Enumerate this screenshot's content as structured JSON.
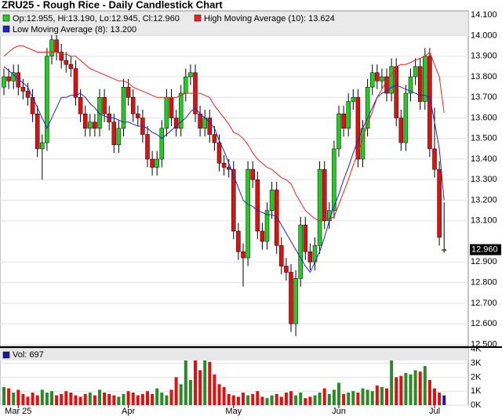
{
  "chart_data": {
    "type": "candlestick",
    "title": "ZRU25 - Rough Rice - Daily Candlestick Chart",
    "ohlc_label": "Op:12.955, Hi:13.190, Lo:12.945, Cl:12.960",
    "categories": [
      null,
      null,
      null,
      "Mar 25",
      null,
      null,
      null,
      null,
      null,
      null,
      null,
      null,
      null,
      null,
      null,
      null,
      null,
      null,
      null,
      null,
      null,
      null,
      null,
      null,
      null,
      null,
      "Apr",
      null,
      null,
      null,
      null,
      null,
      null,
      null,
      null,
      null,
      null,
      null,
      null,
      null,
      null,
      null,
      null,
      null,
      null,
      null,
      null,
      null,
      "May",
      null,
      null,
      null,
      null,
      null,
      null,
      null,
      null,
      null,
      null,
      null,
      null,
      null,
      null,
      null,
      null,
      null,
      null,
      null,
      null,
      null,
      "Jun",
      null,
      null,
      null,
      null,
      null,
      null,
      null,
      null,
      null,
      null,
      null,
      null,
      null,
      null,
      null,
      null,
      null,
      null,
      null,
      "Jul",
      null,
      null
    ],
    "open": [
      13.75,
      13.8,
      13.78,
      13.82,
      13.75,
      13.73,
      13.7,
      13.62,
      13.45,
      13.48,
      13.9,
      13.98,
      13.92,
      13.88,
      13.86,
      13.84,
      13.7,
      13.62,
      13.55,
      13.58,
      13.55,
      13.7,
      13.62,
      13.58,
      13.47,
      13.55,
      13.75,
      13.7,
      13.62,
      13.6,
      13.52,
      13.4,
      13.36,
      13.4,
      13.55,
      13.7,
      13.6,
      13.55,
      13.72,
      13.8,
      13.82,
      13.62,
      13.55,
      13.6,
      13.52,
      13.48,
      13.38,
      13.36,
      13.35,
      13.05,
      12.95,
      12.92,
      13.35,
      13.3,
      13.05,
      13.0,
      13.15,
      13.25,
      12.98,
      12.88,
      12.85,
      12.6,
      12.82,
      13.08,
      12.95,
      12.9,
      12.98,
      13.35,
      13.1,
      13.15,
      13.45,
      13.62,
      13.55,
      13.68,
      13.7,
      13.4,
      13.55,
      13.75,
      13.82,
      13.78,
      13.8,
      13.72,
      13.85,
      13.6,
      13.48,
      13.72,
      13.8,
      13.85,
      13.68,
      13.9,
      13.45,
      13.35,
      12.955
    ],
    "high": [
      13.84,
      13.84,
      13.86,
      13.86,
      13.79,
      13.77,
      13.74,
      13.66,
      13.52,
      13.94,
      14.05,
      14.02,
      13.96,
      13.92,
      13.9,
      13.88,
      13.74,
      13.66,
      13.62,
      13.62,
      13.74,
      13.74,
      13.66,
      13.62,
      13.59,
      13.79,
      13.79,
      13.74,
      13.66,
      13.64,
      13.56,
      13.44,
      13.44,
      13.59,
      13.74,
      13.74,
      13.64,
      13.76,
      13.84,
      13.86,
      13.86,
      13.66,
      13.64,
      13.64,
      13.56,
      13.52,
      13.42,
      13.4,
      13.39,
      13.09,
      12.99,
      13.39,
      13.39,
      13.34,
      13.09,
      13.19,
      13.29,
      13.29,
      13.02,
      12.92,
      12.89,
      12.86,
      13.12,
      13.12,
      12.99,
      13.02,
      13.39,
      13.39,
      13.19,
      13.49,
      13.66,
      13.66,
      13.72,
      13.74,
      13.74,
      13.59,
      13.79,
      13.86,
      13.86,
      13.84,
      13.84,
      13.89,
      13.89,
      13.64,
      13.76,
      13.84,
      13.89,
      13.89,
      13.94,
      13.94,
      13.65,
      13.39,
      13.19
    ],
    "low": [
      13.71,
      13.74,
      13.74,
      13.71,
      13.69,
      13.66,
      13.58,
      13.41,
      13.3,
      13.44,
      13.86,
      13.88,
      13.84,
      13.82,
      13.8,
      13.66,
      13.58,
      13.51,
      13.51,
      13.51,
      13.51,
      13.58,
      13.54,
      13.43,
      13.43,
      13.51,
      13.66,
      13.58,
      13.56,
      13.48,
      13.36,
      13.32,
      13.32,
      13.36,
      13.51,
      13.56,
      13.51,
      13.51,
      13.68,
      13.76,
      13.58,
      13.51,
      13.51,
      13.48,
      13.44,
      13.34,
      13.32,
      13.31,
      13.01,
      12.91,
      12.78,
      12.88,
      13.26,
      13.01,
      12.96,
      12.96,
      13.11,
      12.94,
      12.84,
      12.81,
      12.56,
      12.54,
      12.78,
      12.91,
      12.86,
      12.86,
      12.94,
      13.06,
      13.06,
      13.11,
      13.41,
      13.51,
      13.51,
      13.64,
      13.36,
      13.36,
      13.51,
      13.71,
      13.74,
      13.74,
      13.68,
      13.68,
      13.56,
      13.44,
      13.44,
      13.68,
      13.76,
      13.64,
      13.64,
      13.41,
      13.31,
      12.98,
      12.945
    ],
    "close": [
      13.8,
      13.78,
      13.82,
      13.75,
      13.73,
      13.7,
      13.62,
      13.45,
      13.48,
      13.9,
      13.98,
      13.92,
      13.88,
      13.86,
      13.84,
      13.7,
      13.62,
      13.55,
      13.58,
      13.55,
      13.7,
      13.62,
      13.58,
      13.47,
      13.55,
      13.75,
      13.7,
      13.62,
      13.6,
      13.52,
      13.4,
      13.36,
      13.4,
      13.55,
      13.7,
      13.6,
      13.55,
      13.72,
      13.8,
      13.82,
      13.62,
      13.55,
      13.6,
      13.52,
      13.48,
      13.38,
      13.36,
      13.35,
      13.05,
      12.95,
      12.92,
      13.35,
      13.3,
      13.05,
      13.0,
      13.15,
      13.25,
      12.98,
      12.88,
      12.85,
      12.6,
      12.82,
      13.08,
      12.95,
      12.9,
      12.98,
      13.35,
      13.1,
      13.15,
      13.45,
      13.62,
      13.55,
      13.68,
      13.7,
      13.4,
      13.55,
      13.75,
      13.82,
      13.78,
      13.8,
      13.72,
      13.85,
      13.6,
      13.48,
      13.72,
      13.8,
      13.85,
      13.68,
      13.9,
      13.45,
      13.35,
      13.02,
      12.96
    ],
    "up_color": "#22cc22",
    "down_color": "#dd1111",
    "series": [
      {
        "name": "High Moving Average (10): 13.624",
        "color": "#ee2222",
        "values": [
          13.9,
          13.92,
          13.94,
          13.95,
          13.95,
          13.94,
          13.93,
          13.92,
          13.92,
          13.92,
          13.92,
          13.92,
          13.91,
          13.91,
          13.9,
          13.9,
          13.88,
          13.86,
          13.84,
          13.83,
          13.82,
          13.81,
          13.8,
          13.79,
          13.78,
          13.78,
          13.77,
          13.75,
          13.74,
          13.73,
          13.72,
          13.71,
          13.7,
          13.7,
          13.7,
          13.7,
          13.7,
          13.71,
          13.72,
          13.72,
          13.72,
          13.72,
          13.71,
          13.7,
          13.66,
          13.63,
          13.6,
          13.57,
          13.53,
          13.52,
          13.5,
          13.47,
          13.43,
          13.4,
          13.38,
          13.36,
          13.35,
          13.33,
          13.31,
          13.3,
          13.28,
          13.23,
          13.19,
          13.15,
          13.13,
          13.11,
          13.1,
          13.11,
          13.11,
          13.12,
          13.18,
          13.24,
          13.3,
          13.37,
          13.43,
          13.5,
          13.57,
          13.63,
          13.7,
          13.74,
          13.78,
          13.81,
          13.85,
          13.86,
          13.86,
          13.87,
          13.88,
          13.89,
          13.9,
          13.92,
          13.86,
          13.8,
          13.624
        ]
      },
      {
        "name": "Low Moving Average (8): 13.200",
        "color": "#2222cc",
        "values": [
          13.85,
          13.83,
          13.81,
          13.79,
          13.77,
          13.75,
          13.7,
          13.65,
          13.6,
          13.55,
          13.6,
          13.65,
          13.7,
          13.7,
          13.71,
          13.71,
          13.72,
          13.7,
          13.67,
          13.65,
          13.62,
          13.61,
          13.6,
          13.6,
          13.59,
          13.58,
          13.58,
          13.57,
          13.56,
          13.56,
          13.55,
          13.53,
          13.52,
          13.5,
          13.52,
          13.54,
          13.56,
          13.58,
          13.6,
          13.63,
          13.65,
          13.62,
          13.6,
          13.58,
          13.55,
          13.49,
          13.44,
          13.38,
          13.32,
          13.26,
          13.2,
          13.18,
          13.17,
          13.15,
          13.14,
          13.13,
          13.13,
          13.12,
          13.08,
          13.04,
          13.0,
          12.96,
          12.92,
          12.88,
          12.85,
          12.9,
          12.95,
          13.02,
          13.1,
          13.17,
          13.23,
          13.3,
          13.36,
          13.43,
          13.49,
          13.55,
          13.6,
          13.65,
          13.7,
          13.72,
          13.73,
          13.75,
          13.76,
          13.75,
          13.74,
          13.73,
          13.72,
          13.71,
          13.71,
          13.7,
          13.58,
          13.45,
          13.2
        ]
      }
    ],
    "ylim": [
      12.49,
      14.12
    ],
    "yticks": [
      {
        "value": 12.5,
        "label": "12.500"
      },
      {
        "value": 12.6,
        "label": "12.600"
      },
      {
        "value": 12.7,
        "label": "12.700"
      },
      {
        "value": 12.8,
        "label": "12.800"
      },
      {
        "value": 12.9,
        "label": "12.900"
      },
      {
        "value": 13.1,
        "label": "13.100"
      },
      {
        "value": 13.2,
        "label": "13.200"
      },
      {
        "value": 13.3,
        "label": "13.300"
      },
      {
        "value": 13.4,
        "label": "13.400"
      },
      {
        "value": 13.5,
        "label": "13.500"
      },
      {
        "value": 13.6,
        "label": "13.600"
      },
      {
        "value": 13.7,
        "label": "13.700"
      },
      {
        "value": 13.8,
        "label": "13.800"
      },
      {
        "value": 13.9,
        "label": "13.900"
      },
      {
        "value": 14.0,
        "label": "14.000"
      },
      {
        "value": 14.1,
        "label": "14.100"
      }
    ],
    "last_price_label": "12.960",
    "grid": true,
    "volume": {
      "label": "Vol: 697",
      "values": [
        1300,
        1200,
        900,
        1100,
        800,
        600,
        900,
        700,
        1100,
        900,
        1000,
        700,
        800,
        1000,
        900,
        700,
        600,
        800,
        900,
        700,
        1100,
        900,
        800,
        700,
        600,
        800,
        1000,
        900,
        700,
        800,
        1000,
        800,
        1200,
        900,
        700,
        1100,
        2000,
        1500,
        3200,
        1800,
        3600,
        2500,
        3300,
        3100,
        2200,
        1500,
        1300,
        800,
        700,
        600,
        900,
        700,
        800,
        1000,
        600,
        500,
        700,
        800,
        600,
        900,
        1000,
        700,
        900,
        500,
        600,
        700,
        900,
        1200,
        800,
        1100,
        1600,
        800,
        900,
        1000,
        900,
        1200,
        1100,
        1000,
        1400,
        1300,
        1200,
        3500,
        2000,
        2100,
        2300,
        2200,
        2500,
        2400,
        2800,
        1800,
        1200,
        900,
        697
      ],
      "last_color": "#1a1a99",
      "ylim": [
        0,
        4100
      ],
      "yticks": [
        {
          "value": 0,
          "label": "0K"
        },
        {
          "value": 1000,
          "label": "1K"
        },
        {
          "value": 2000,
          "label": "2K"
        },
        {
          "value": 3000,
          "label": "3K"
        },
        {
          "value": 4000,
          "label": "4K"
        }
      ]
    }
  }
}
